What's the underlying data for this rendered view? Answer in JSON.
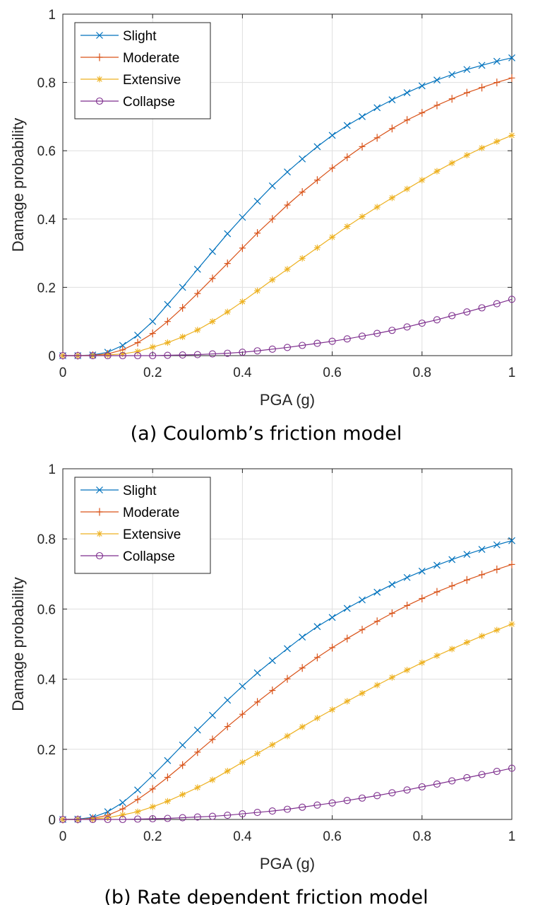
{
  "chart_data": [
    {
      "type": "line",
      "caption": "(a) Coulomb’s friction model",
      "xlabel": "PGA (g)",
      "ylabel": "Damage probability",
      "xlim": [
        0,
        1
      ],
      "ylim": [
        0,
        1
      ],
      "xticks": [
        "0",
        "0.2",
        "0.4",
        "0.6",
        "0.8",
        "1"
      ],
      "yticks": [
        "0",
        "0.2",
        "0.4",
        "0.6",
        "0.8",
        "1"
      ],
      "grid": true,
      "legend_position": "top-left",
      "x": [
        0,
        0.0333,
        0.0667,
        0.1,
        0.1333,
        0.1667,
        0.2,
        0.2333,
        0.2667,
        0.3,
        0.3333,
        0.3667,
        0.4,
        0.4333,
        0.4667,
        0.5,
        0.5333,
        0.5667,
        0.6,
        0.6333,
        0.6667,
        0.7,
        0.7333,
        0.7667,
        0.8,
        0.8333,
        0.8667,
        0.9,
        0.9333,
        0.9667,
        1
      ],
      "series": [
        {
          "name": "Slight",
          "color": "#0072BD",
          "marker": "x",
          "values": [
            0,
            0.0,
            0.002,
            0.01,
            0.03,
            0.06,
            0.1,
            0.15,
            0.2,
            0.253,
            0.305,
            0.357,
            0.405,
            0.452,
            0.497,
            0.538,
            0.576,
            0.612,
            0.645,
            0.674,
            0.7,
            0.726,
            0.749,
            0.77,
            0.79,
            0.807,
            0.823,
            0.838,
            0.85,
            0.862,
            0.872
          ]
        },
        {
          "name": "Moderate",
          "color": "#D95319",
          "marker": "+",
          "values": [
            0,
            0.0,
            0.001,
            0.005,
            0.017,
            0.038,
            0.065,
            0.1,
            0.14,
            0.182,
            0.226,
            0.27,
            0.315,
            0.359,
            0.4,
            0.441,
            0.479,
            0.514,
            0.549,
            0.581,
            0.612,
            0.638,
            0.665,
            0.69,
            0.711,
            0.733,
            0.752,
            0.77,
            0.785,
            0.8,
            0.813
          ]
        },
        {
          "name": "Extensive",
          "color": "#EDB120",
          "marker": "*",
          "values": [
            0,
            0.0,
            0.0,
            0.002,
            0.005,
            0.012,
            0.025,
            0.038,
            0.055,
            0.075,
            0.1,
            0.128,
            0.158,
            0.19,
            0.222,
            0.253,
            0.285,
            0.316,
            0.347,
            0.378,
            0.407,
            0.435,
            0.462,
            0.488,
            0.514,
            0.54,
            0.564,
            0.587,
            0.608,
            0.627,
            0.645
          ]
        },
        {
          "name": "Collapse",
          "color": "#7E2F8E",
          "marker": "o",
          "values": [
            0,
            0.0,
            0.0,
            0.0,
            0.0,
            0.0,
            0.0,
            0.001,
            0.002,
            0.003,
            0.005,
            0.007,
            0.01,
            0.014,
            0.019,
            0.024,
            0.03,
            0.036,
            0.042,
            0.049,
            0.057,
            0.065,
            0.074,
            0.084,
            0.095,
            0.105,
            0.117,
            0.128,
            0.14,
            0.152,
            0.165
          ]
        }
      ]
    },
    {
      "type": "line",
      "caption": "(b) Rate dependent friction model",
      "xlabel": "PGA (g)",
      "ylabel": "Damage probability",
      "xlim": [
        0,
        1
      ],
      "ylim": [
        0,
        1
      ],
      "xticks": [
        "0",
        "0.2",
        "0.4",
        "0.6",
        "0.8",
        "1"
      ],
      "yticks": [
        "0",
        "0.2",
        "0.4",
        "0.6",
        "0.8",
        "1"
      ],
      "grid": true,
      "legend_position": "top-left",
      "x": [
        0,
        0.0333,
        0.0667,
        0.1,
        0.1333,
        0.1667,
        0.2,
        0.2333,
        0.2667,
        0.3,
        0.3333,
        0.3667,
        0.4,
        0.4333,
        0.4667,
        0.5,
        0.5333,
        0.5667,
        0.6,
        0.6333,
        0.6667,
        0.7,
        0.7333,
        0.7667,
        0.8,
        0.8333,
        0.8667,
        0.9,
        0.9333,
        0.9667,
        1
      ],
      "series": [
        {
          "name": "Slight",
          "color": "#0072BD",
          "marker": "x",
          "values": [
            0,
            0.001,
            0.006,
            0.022,
            0.048,
            0.084,
            0.125,
            0.168,
            0.212,
            0.255,
            0.297,
            0.34,
            0.38,
            0.418,
            0.453,
            0.487,
            0.52,
            0.55,
            0.576,
            0.602,
            0.626,
            0.648,
            0.67,
            0.69,
            0.708,
            0.725,
            0.741,
            0.756,
            0.77,
            0.783,
            0.795
          ]
        },
        {
          "name": "Moderate",
          "color": "#D95319",
          "marker": "+",
          "values": [
            0,
            0.0,
            0.003,
            0.012,
            0.03,
            0.057,
            0.087,
            0.12,
            0.155,
            0.192,
            0.228,
            0.265,
            0.3,
            0.335,
            0.368,
            0.401,
            0.432,
            0.462,
            0.49,
            0.516,
            0.541,
            0.565,
            0.588,
            0.61,
            0.63,
            0.649,
            0.666,
            0.683,
            0.698,
            0.713,
            0.727
          ]
        },
        {
          "name": "Extensive",
          "color": "#EDB120",
          "marker": "*",
          "values": [
            0,
            0.0,
            0.001,
            0.005,
            0.013,
            0.022,
            0.036,
            0.052,
            0.071,
            0.091,
            0.113,
            0.138,
            0.163,
            0.188,
            0.213,
            0.238,
            0.264,
            0.289,
            0.313,
            0.337,
            0.36,
            0.383,
            0.405,
            0.426,
            0.447,
            0.467,
            0.486,
            0.505,
            0.523,
            0.54,
            0.557
          ]
        },
        {
          "name": "Collapse",
          "color": "#7E2F8E",
          "marker": "o",
          "values": [
            0,
            0.0,
            0.0,
            0.0,
            0.0,
            0.001,
            0.002,
            0.003,
            0.005,
            0.007,
            0.009,
            0.012,
            0.016,
            0.02,
            0.024,
            0.029,
            0.035,
            0.041,
            0.047,
            0.054,
            0.061,
            0.068,
            0.076,
            0.084,
            0.093,
            0.101,
            0.11,
            0.119,
            0.128,
            0.137,
            0.146
          ]
        }
      ]
    }
  ]
}
